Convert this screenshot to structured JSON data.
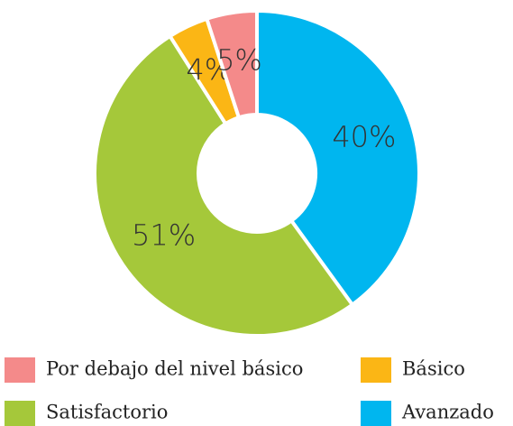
{
  "chart_data": {
    "type": "donut",
    "categories": [
      "Avanzado",
      "Satisfactorio",
      "Básico",
      "Por debajo del nivel básico"
    ],
    "values": [
      40,
      51,
      4,
      5
    ],
    "value_labels": [
      "40%",
      "51%",
      "4%",
      "5%"
    ],
    "colors": [
      "#00b6ef",
      "#a5c83a",
      "#fbb615",
      "#f48a8a"
    ],
    "legend": "bottom"
  }
}
